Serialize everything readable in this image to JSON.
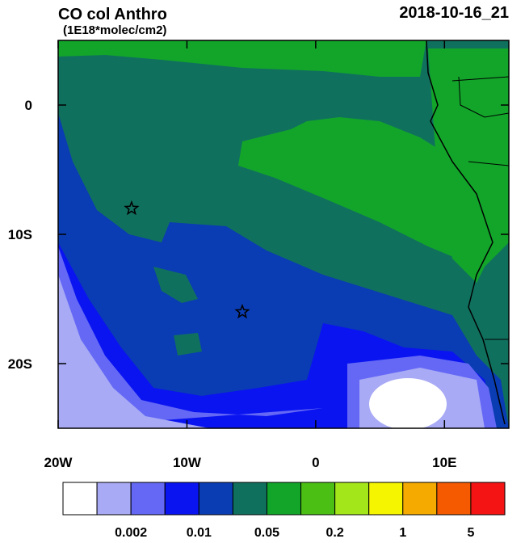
{
  "title": "CO col Anthro",
  "subtitle": "(1E18*molec/cm2)",
  "timestamp": "2018-10-16_21",
  "map": {
    "lon_range": [
      -20,
      15
    ],
    "lat_range": [
      -25,
      5
    ],
    "lon_ticks": [
      {
        "value": -20,
        "label": "20W"
      },
      {
        "value": -10,
        "label": "10W"
      },
      0,
      {
        "value": 10,
        "label": "10E"
      }
    ],
    "lat_ticks": [
      0,
      {
        "value": -10,
        "label": "10S"
      },
      {
        "value": -20,
        "label": "20S"
      }
    ],
    "markers": [
      {
        "lon": -14.3,
        "lat": -8
      },
      {
        "lon": -5.7,
        "lat": -16
      }
    ]
  },
  "colorbar": {
    "colors": [
      "#ffffff",
      "#a8aaf5",
      "#6468f5",
      "#0a14f0",
      "#0a3cb4",
      "#10705e",
      "#12a52a",
      "#4bbf14",
      "#a3e619",
      "#f5f500",
      "#f5aa00",
      "#f55a00",
      "#f51414"
    ],
    "labels": [
      "0.002",
      "0.01",
      "0.05",
      "0.2",
      "1",
      "5"
    ]
  }
}
